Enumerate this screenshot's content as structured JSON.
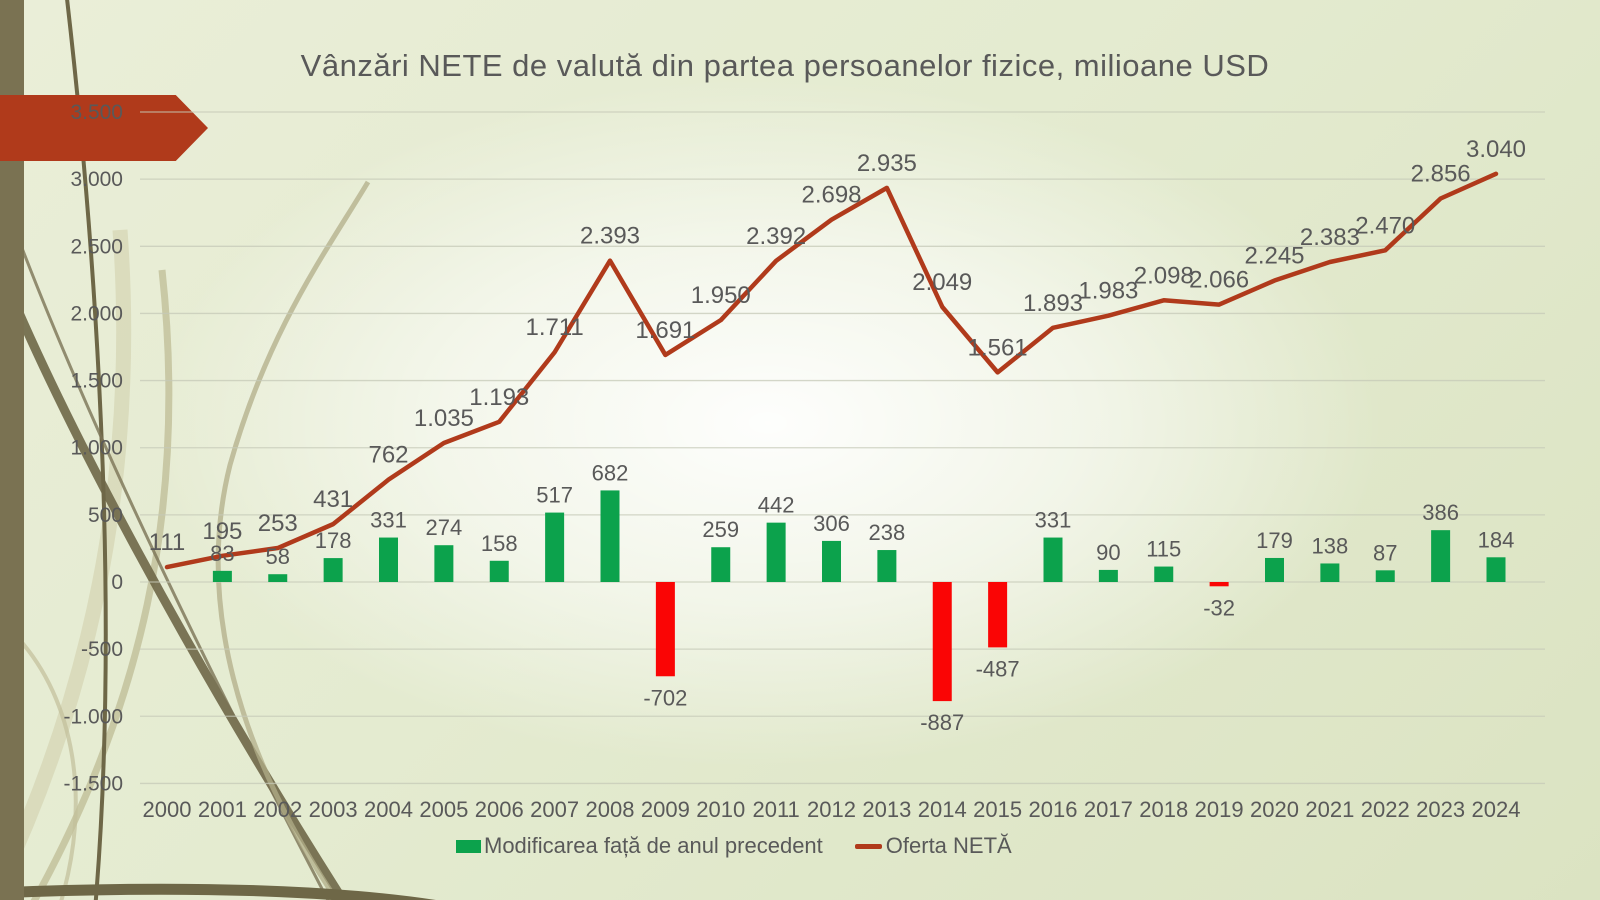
{
  "theme": {
    "bar_positive": "#0ca24c",
    "bar_negative": "#fa0505",
    "line_color": "#b03a1b",
    "arrow_banner": "#b03a1b",
    "left_accent_bar": "#7a7252",
    "text_color": "#595959",
    "gridline_color": "#c6cab8"
  },
  "chart_data": {
    "type": "combo-bar-line",
    "title": "Vânzări NETE de valută din partea persoanelor fizice, milioane USD",
    "categories": [
      "2000",
      "2001",
      "2002",
      "2003",
      "2004",
      "2005",
      "2006",
      "2007",
      "2008",
      "2009",
      "2010",
      "2011",
      "2012",
      "2013",
      "2014",
      "2015",
      "2016",
      "2017",
      "2018",
      "2019",
      "2020",
      "2021",
      "2022",
      "2023",
      "2024"
    ],
    "series": [
      {
        "name": "Modificarea față de anul precedent",
        "type": "bar",
        "values": [
          null,
          83,
          58,
          178,
          331,
          274,
          158,
          517,
          682,
          -702,
          259,
          442,
          306,
          238,
          -887,
          -487,
          331,
          90,
          115,
          -32,
          179,
          138,
          87,
          386,
          184
        ],
        "labels": [
          "",
          "83",
          "58",
          "178",
          "331",
          "274",
          "158",
          "517",
          "682",
          "-702",
          "259",
          "442",
          "306",
          "238",
          "-887",
          "-487",
          "331",
          "90",
          "115",
          "-32",
          "179",
          "138",
          "87",
          "386",
          "184"
        ],
        "color_positive": "#0ca24c",
        "color_negative": "#fa0505"
      },
      {
        "name": "Oferta NETĂ",
        "type": "line",
        "values": [
          111,
          195,
          253,
          431,
          762,
          1035,
          1193,
          1711,
          2393,
          1691,
          1950,
          2392,
          2698,
          2935,
          2049,
          1561,
          1893,
          1983,
          2098,
          2066,
          2245,
          2383,
          2470,
          2856,
          3040
        ],
        "labels": [
          "111",
          "195",
          "253",
          "431",
          "762",
          "1.035",
          "1.193",
          "1.711",
          "2.393",
          "1.691",
          "1.950",
          "2.392",
          "2.698",
          "2.935",
          "2.049",
          "1.561",
          "1.893",
          "1.983",
          "2.098",
          "2.066",
          "2.245",
          "2.383",
          "2.470",
          "2.856",
          "3.040"
        ],
        "color": "#b03a1b"
      }
    ],
    "y_axis": {
      "min": -1500,
      "max": 3500,
      "step": 500,
      "tick_labels": [
        "3.500",
        "3.000",
        "2.500",
        "2.000",
        "1.500",
        "1.000",
        "500",
        "0",
        "-500",
        "-1.000",
        "-1.500"
      ]
    },
    "grid": true,
    "legend_position": "bottom"
  }
}
